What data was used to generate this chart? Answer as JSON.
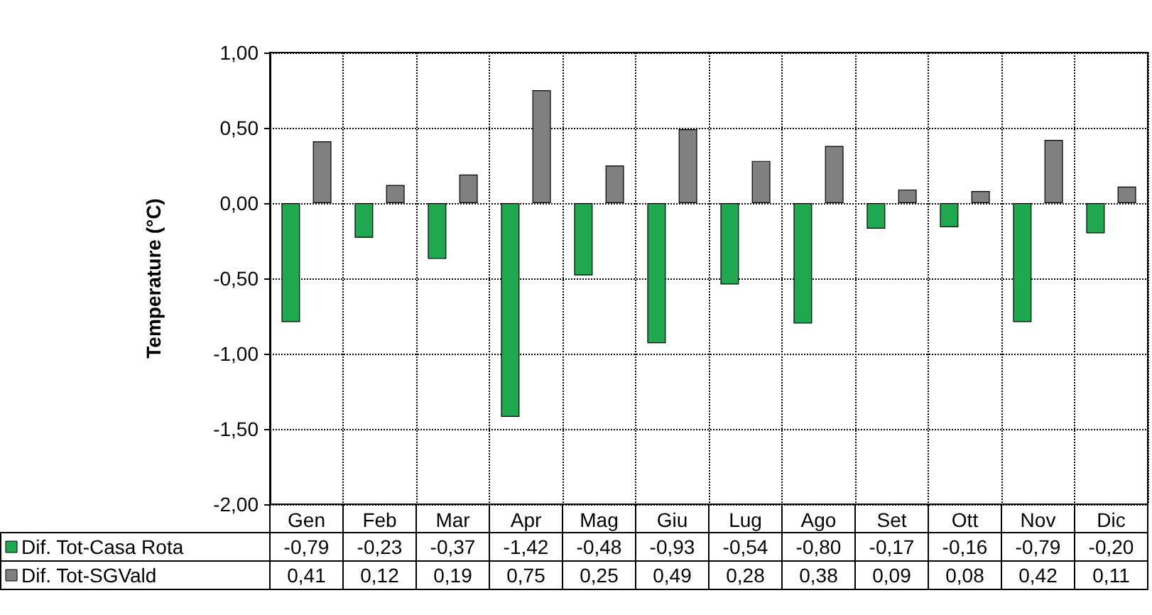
{
  "chart_data": {
    "type": "bar",
    "ylabel": "Temperature (°C)",
    "categories": [
      "Gen",
      "Feb",
      "Mar",
      "Apr",
      "Mag",
      "Giu",
      "Lug",
      "Ago",
      "Set",
      "Ott",
      "Nov",
      "Dic"
    ],
    "series": [
      {
        "name": "Dif. Tot-Casa Rota",
        "color": "#1fa84f",
        "values": [
          -0.79,
          -0.23,
          -0.37,
          -1.42,
          -0.48,
          -0.93,
          -0.54,
          -0.8,
          -0.17,
          -0.16,
          -0.79,
          -0.2
        ],
        "value_labels": [
          "-0,79",
          "-0,23",
          "-0,37",
          "-1,42",
          "-0,48",
          "-0,93",
          "-0,54",
          "-0,80",
          "-0,17",
          "-0,16",
          "-0,79",
          "-0,20"
        ]
      },
      {
        "name": "Dif. Tot-SGVald",
        "color": "#808080",
        "values": [
          0.41,
          0.12,
          0.19,
          0.75,
          0.25,
          0.49,
          0.28,
          0.38,
          0.09,
          0.08,
          0.42,
          0.11
        ],
        "value_labels": [
          "0,41",
          "0,12",
          "0,19",
          "0,75",
          "0,25",
          "0,49",
          "0,28",
          "0,38",
          "0,09",
          "0,08",
          "0,42",
          "0,11"
        ]
      }
    ],
    "ylim": [
      -2,
      1
    ],
    "yticks": [
      {
        "value": -2,
        "label": "-2,00"
      },
      {
        "value": -1.5,
        "label": "-1,50"
      },
      {
        "value": -1,
        "label": "-1,00"
      },
      {
        "value": -0.5,
        "label": "-0,50"
      },
      {
        "value": 0,
        "label": "0,00"
      },
      {
        "value": 0.5,
        "label": "0,50"
      },
      {
        "value": 1,
        "label": "1,00"
      }
    ],
    "grid": true,
    "legend": "bottom left"
  }
}
